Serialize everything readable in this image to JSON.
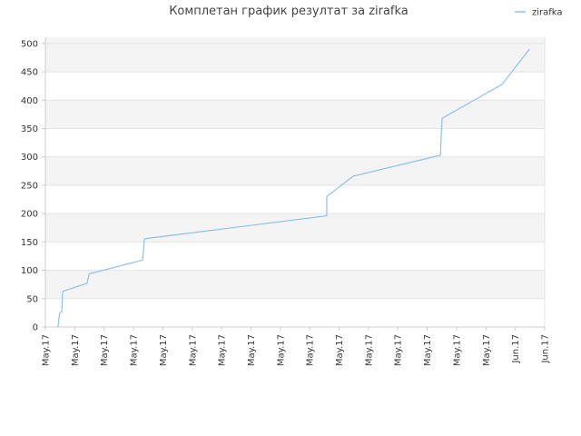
{
  "chart_data": {
    "type": "line",
    "title": "Комплетан график резултат за zirafka",
    "legend": "top-right",
    "grid": true,
    "series": [
      {
        "name": "zirafka",
        "color": "#8cc1ee",
        "x": [
          0.43,
          0.46,
          0.49,
          0.56,
          0.57,
          0.59,
          1.42,
          1.48,
          1.51,
          3.31,
          3.34,
          3.37,
          3.43,
          9.58,
          9.58,
          10.48,
          13.45,
          13.48,
          13.51,
          15.55,
          16.48
        ],
        "values": [
          0,
          15,
          25,
          27,
          45,
          63,
          77,
          92,
          94,
          118,
          135,
          155,
          156,
          196,
          230,
          266,
          303,
          340,
          368,
          428,
          490
        ]
      }
    ],
    "xlim": [
      0,
      17
    ],
    "xticks": [
      {
        "value": 0,
        "label": "May.17"
      },
      {
        "value": 1,
        "label": "May.17"
      },
      {
        "value": 2,
        "label": "May.17"
      },
      {
        "value": 3,
        "label": "May.17"
      },
      {
        "value": 4,
        "label": "May.17"
      },
      {
        "value": 5,
        "label": "May.17"
      },
      {
        "value": 6,
        "label": "May.17"
      },
      {
        "value": 7,
        "label": "May.17"
      },
      {
        "value": 8,
        "label": "May.17"
      },
      {
        "value": 9,
        "label": "May.17"
      },
      {
        "value": 10,
        "label": "May.17"
      },
      {
        "value": 11,
        "label": "May.17"
      },
      {
        "value": 12,
        "label": "May.17"
      },
      {
        "value": 13,
        "label": "May.17"
      },
      {
        "value": 14,
        "label": "May.17"
      },
      {
        "value": 15,
        "label": "May.17"
      },
      {
        "value": 16,
        "label": "Jun.17"
      },
      {
        "value": 17,
        "label": "Jun.17"
      }
    ],
    "ylim": [
      0,
      511
    ],
    "yticks": [
      0,
      50,
      100,
      150,
      200,
      250,
      300,
      350,
      400,
      450,
      500
    ]
  }
}
